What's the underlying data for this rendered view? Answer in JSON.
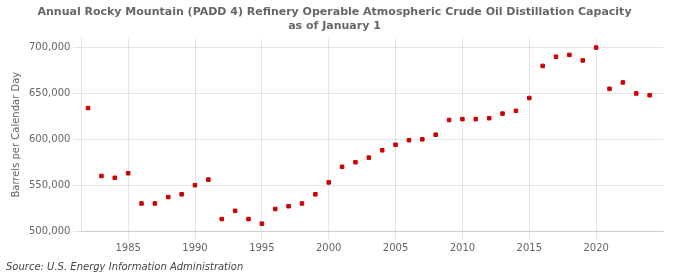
{
  "chart_data": {
    "type": "scatter",
    "title": "Annual Rocky Mountain (PADD 4) Refinery Operable Atmospheric Crude Oil Distillation Capacity\nas of January 1",
    "ylabel": "Barrels per Calendar Day",
    "annotation": "Source: U.S. Energy Information Administration",
    "x": [
      1982,
      1983,
      1984,
      1985,
      1986,
      1987,
      1988,
      1989,
      1990,
      1991,
      1992,
      1993,
      1994,
      1995,
      1996,
      1997,
      1998,
      1999,
      2000,
      2001,
      2002,
      2003,
      2004,
      2005,
      2006,
      2007,
      2008,
      2009,
      2010,
      2011,
      2012,
      2013,
      2014,
      2015,
      2016,
      2017,
      2018,
      2019,
      2020,
      2021,
      2022,
      2023,
      2024
    ],
    "values": [
      634000,
      560000,
      558000,
      563000,
      530000,
      530000,
      537000,
      540000,
      550000,
      556000,
      513000,
      522000,
      513000,
      508000,
      524000,
      527000,
      530000,
      540000,
      553000,
      570000,
      575000,
      580000,
      588000,
      594000,
      599000,
      600000,
      605000,
      621000,
      622000,
      622000,
      623000,
      628000,
      631000,
      645000,
      680000,
      690000,
      692000,
      686000,
      700000,
      655000,
      662000,
      650000,
      648000
    ],
    "color": "#cc0000",
    "marker": "square",
    "xlim": [
      1981.5,
      2025
    ],
    "xticks": [
      1985,
      1990,
      1995,
      2000,
      2005,
      2010,
      2015,
      2020
    ],
    "ylim": [
      500000,
      710000
    ],
    "yticks": [
      {
        "value": 500000,
        "label": "500,000"
      },
      {
        "value": 550000,
        "label": "550,000"
      },
      {
        "value": 600000,
        "label": "600,000"
      },
      {
        "value": 650000,
        "label": "650,000"
      },
      {
        "value": 700000,
        "label": "700,000"
      }
    ],
    "grid": true
  }
}
